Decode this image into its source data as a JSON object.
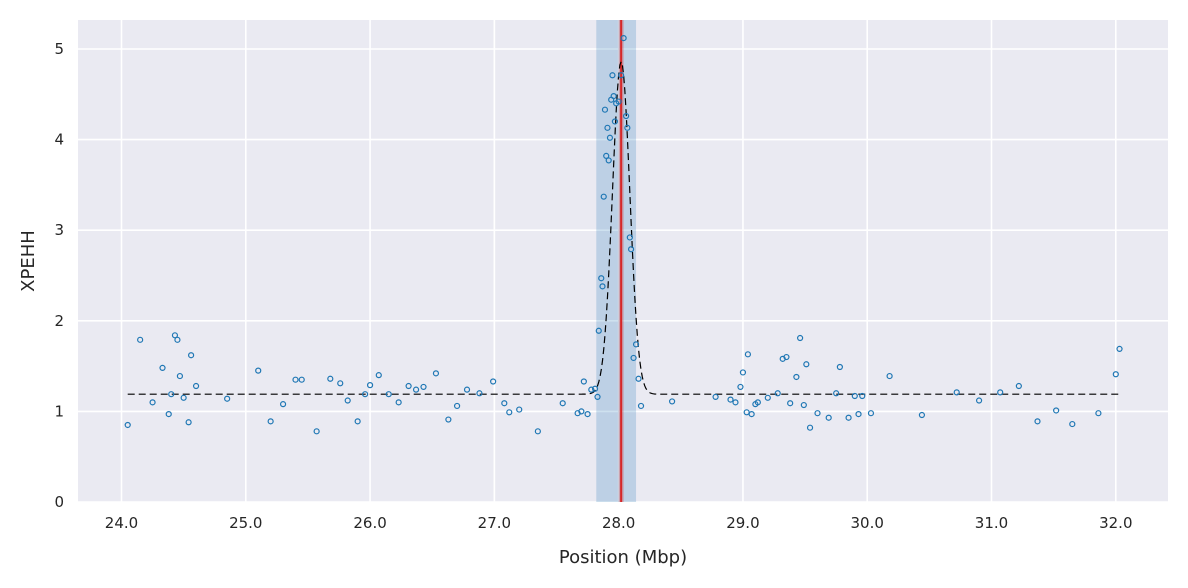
{
  "chart_data": {
    "type": "scatter",
    "title": "",
    "xlabel": "Position (Mbp)",
    "ylabel": "XPEHH",
    "xlim": [
      23.65,
      32.42
    ],
    "ylim": [
      0,
      5.32
    ],
    "xticks": [
      24.0,
      25.0,
      26.0,
      27.0,
      28.0,
      29.0,
      30.0,
      31.0,
      32.0
    ],
    "xtick_labels": [
      "24.0",
      "25.0",
      "26.0",
      "27.0",
      "28.0",
      "29.0",
      "30.0",
      "31.0",
      "32.0"
    ],
    "yticks": [
      0,
      1,
      2,
      3,
      4,
      5
    ],
    "ytick_labels": [
      "0",
      "1",
      "2",
      "3",
      "4",
      "5"
    ],
    "grid": true,
    "background_color": "#eaeaf2",
    "grid_color": "#ffffff",
    "point_color": "#1f77b4",
    "fit_color": "#000000",
    "peak_line_color": "#d62728",
    "region_color": "#1f77b4",
    "highlight_region": [
      27.82,
      28.14
    ],
    "peak_band": [
      28.0,
      28.04
    ],
    "peak_center": 28.02,
    "fit_curve": {
      "style": "dashed",
      "baseline": 1.19,
      "peak_x": 28.02,
      "peak_height": 3.67,
      "sigma": 0.07
    },
    "points": [
      [
        24.05,
        0.85
      ],
      [
        24.15,
        1.79
      ],
      [
        24.25,
        1.1
      ],
      [
        24.33,
        1.48
      ],
      [
        24.38,
        0.97
      ],
      [
        24.4,
        1.19
      ],
      [
        24.43,
        1.84
      ],
      [
        24.45,
        1.79
      ],
      [
        24.47,
        1.39
      ],
      [
        24.5,
        1.15
      ],
      [
        24.54,
        0.88
      ],
      [
        24.56,
        1.62
      ],
      [
        24.6,
        1.28
      ],
      [
        24.85,
        1.14
      ],
      [
        25.1,
        1.45
      ],
      [
        25.2,
        0.89
      ],
      [
        25.3,
        1.08
      ],
      [
        25.4,
        1.35
      ],
      [
        25.45,
        1.35
      ],
      [
        25.57,
        0.78
      ],
      [
        25.68,
        1.36
      ],
      [
        25.76,
        1.31
      ],
      [
        25.82,
        1.12
      ],
      [
        25.9,
        0.89
      ],
      [
        25.96,
        1.19
      ],
      [
        26.0,
        1.29
      ],
      [
        26.07,
        1.4
      ],
      [
        26.15,
        1.19
      ],
      [
        26.23,
        1.1
      ],
      [
        26.31,
        1.28
      ],
      [
        26.37,
        1.24
      ],
      [
        26.43,
        1.27
      ],
      [
        26.53,
        1.42
      ],
      [
        26.63,
        0.91
      ],
      [
        26.7,
        1.06
      ],
      [
        26.78,
        1.24
      ],
      [
        26.88,
        1.2
      ],
      [
        26.99,
        1.33
      ],
      [
        27.08,
        1.09
      ],
      [
        27.12,
        0.99
      ],
      [
        27.2,
        1.02
      ],
      [
        27.35,
        0.78
      ],
      [
        27.55,
        1.09
      ],
      [
        27.67,
        0.98
      ],
      [
        27.7,
        1.0
      ],
      [
        27.72,
        1.33
      ],
      [
        27.75,
        0.97
      ],
      [
        27.78,
        1.24
      ],
      [
        27.81,
        1.25
      ],
      [
        27.83,
        1.16
      ],
      [
        27.84,
        1.89
      ],
      [
        27.86,
        2.47
      ],
      [
        27.87,
        2.38
      ],
      [
        27.88,
        3.37
      ],
      [
        27.89,
        4.33
      ],
      [
        27.9,
        3.82
      ],
      [
        27.91,
        4.13
      ],
      [
        27.92,
        3.77
      ],
      [
        27.93,
        4.02
      ],
      [
        27.94,
        4.44
      ],
      [
        27.95,
        4.71
      ],
      [
        27.96,
        4.48
      ],
      [
        27.97,
        4.2
      ],
      [
        27.98,
        4.4
      ],
      [
        28.0,
        4.42
      ],
      [
        28.02,
        4.71
      ],
      [
        28.04,
        5.12
      ],
      [
        28.06,
        4.26
      ],
      [
        28.07,
        4.13
      ],
      [
        28.09,
        2.92
      ],
      [
        28.1,
        2.79
      ],
      [
        28.12,
        1.59
      ],
      [
        28.14,
        1.74
      ],
      [
        28.16,
        1.36
      ],
      [
        28.18,
        1.06
      ],
      [
        28.43,
        1.11
      ],
      [
        28.78,
        1.16
      ],
      [
        28.9,
        1.13
      ],
      [
        28.94,
        1.1
      ],
      [
        28.98,
        1.27
      ],
      [
        29.0,
        1.43
      ],
      [
        29.03,
        0.99
      ],
      [
        29.04,
        1.63
      ],
      [
        29.07,
        0.97
      ],
      [
        29.1,
        1.08
      ],
      [
        29.12,
        1.1
      ],
      [
        29.2,
        1.15
      ],
      [
        29.28,
        1.2
      ],
      [
        29.32,
        1.58
      ],
      [
        29.35,
        1.6
      ],
      [
        29.38,
        1.09
      ],
      [
        29.43,
        1.38
      ],
      [
        29.46,
        1.81
      ],
      [
        29.49,
        1.07
      ],
      [
        29.51,
        1.52
      ],
      [
        29.54,
        0.82
      ],
      [
        29.6,
        0.98
      ],
      [
        29.69,
        0.93
      ],
      [
        29.75,
        1.2
      ],
      [
        29.78,
        1.49
      ],
      [
        29.85,
        0.93
      ],
      [
        29.9,
        1.17
      ],
      [
        29.93,
        0.97
      ],
      [
        29.96,
        1.17
      ],
      [
        30.03,
        0.98
      ],
      [
        30.18,
        1.39
      ],
      [
        30.44,
        0.96
      ],
      [
        30.72,
        1.21
      ],
      [
        30.9,
        1.12
      ],
      [
        31.07,
        1.21
      ],
      [
        31.22,
        1.28
      ],
      [
        31.37,
        0.89
      ],
      [
        31.52,
        1.01
      ],
      [
        31.65,
        0.86
      ],
      [
        31.86,
        0.98
      ],
      [
        32.0,
        1.41
      ],
      [
        32.03,
        1.69
      ]
    ]
  }
}
